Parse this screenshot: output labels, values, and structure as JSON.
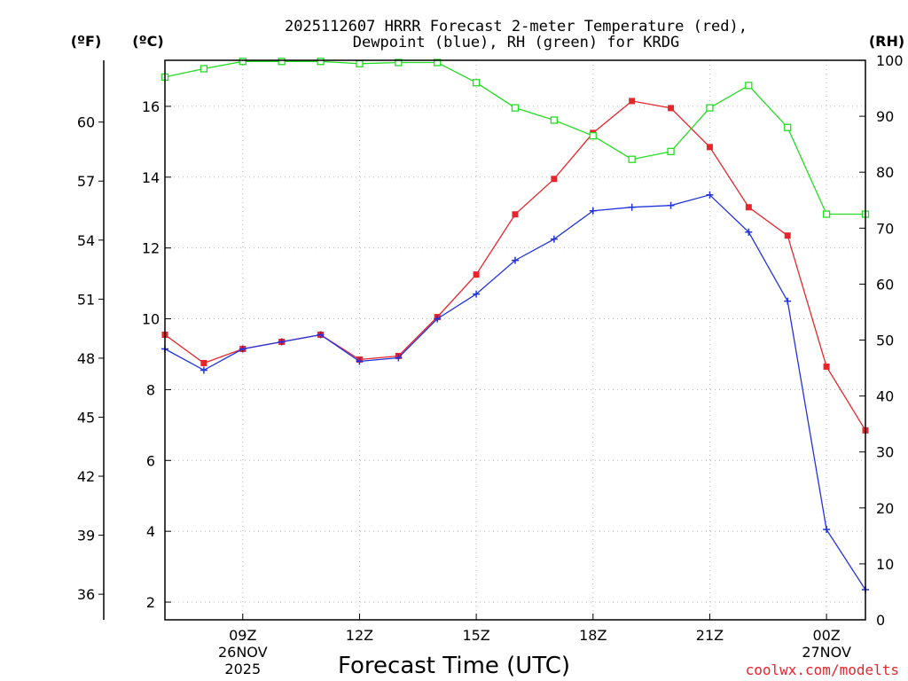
{
  "chart_data": {
    "type": "line",
    "title_line1": "2025112607 HRRR Forecast 2-meter Temperature (red),",
    "title_line2": "Dewpoint (blue), RH (green) for KRDG",
    "xlabel": "Forecast Time (UTC)",
    "credit": "coolwx.com/modelts",
    "unit_f": "(ºF)",
    "unit_c": "(ºC)",
    "unit_rh": "(RH)",
    "x": [
      7,
      8,
      9,
      10,
      11,
      12,
      13,
      14,
      15,
      16,
      17,
      18,
      19,
      20,
      21,
      22,
      23,
      24,
      25
    ],
    "xlim": [
      7,
      25
    ],
    "ylim_c": [
      1.5,
      17.3
    ],
    "ylim_rh": [
      0,
      100
    ],
    "x_ticks": [
      {
        "x": 9,
        "label": "09Z",
        "sub1": "26NOV",
        "sub2": "2025"
      },
      {
        "x": 12,
        "label": "12Z",
        "sub1": "",
        "sub2": ""
      },
      {
        "x": 15,
        "label": "15Z",
        "sub1": "",
        "sub2": ""
      },
      {
        "x": 18,
        "label": "18Z",
        "sub1": "",
        "sub2": ""
      },
      {
        "x": 21,
        "label": "21Z",
        "sub1": "",
        "sub2": ""
      },
      {
        "x": 24,
        "label": "00Z",
        "sub1": "27NOV",
        "sub2": ""
      }
    ],
    "y_ticks_c": [
      "2",
      "4",
      "6",
      "8",
      "10",
      "12",
      "14",
      "16"
    ],
    "y_ticks_f": [
      "36",
      "39",
      "42",
      "45",
      "48",
      "51",
      "54",
      "57",
      "60"
    ],
    "y_ticks_rh": [
      "0",
      "10",
      "20",
      "30",
      "40",
      "50",
      "60",
      "70",
      "80",
      "90",
      "100"
    ],
    "series": [
      {
        "name": "Temperature",
        "color": "#e8252b",
        "marker": "square-filled",
        "values": [
          9.55,
          8.75,
          9.15,
          9.35,
          9.55,
          8.85,
          8.95,
          10.05,
          11.25,
          12.95,
          13.95,
          15.25,
          16.15,
          15.95,
          14.85,
          13.15,
          12.35,
          8.65,
          6.85
        ]
      },
      {
        "name": "Dewpoint",
        "color": "#2233dd",
        "marker": "plus",
        "values": [
          9.15,
          8.55,
          9.15,
          9.35,
          9.55,
          8.8,
          8.9,
          10.0,
          10.7,
          11.65,
          12.25,
          13.05,
          13.15,
          13.2,
          13.5,
          12.45,
          10.5,
          4.05,
          2.35
        ]
      },
      {
        "name": "RH",
        "color": "#22dd22",
        "marker": "square-open",
        "axis": "rh",
        "values": [
          97,
          98.5,
          99.8,
          99.8,
          99.8,
          99.4,
          99.6,
          99.6,
          96,
          91.5,
          89.3,
          86.5,
          82.3,
          83.7,
          91.5,
          95.5,
          88,
          72.5,
          72.5
        ]
      }
    ]
  }
}
